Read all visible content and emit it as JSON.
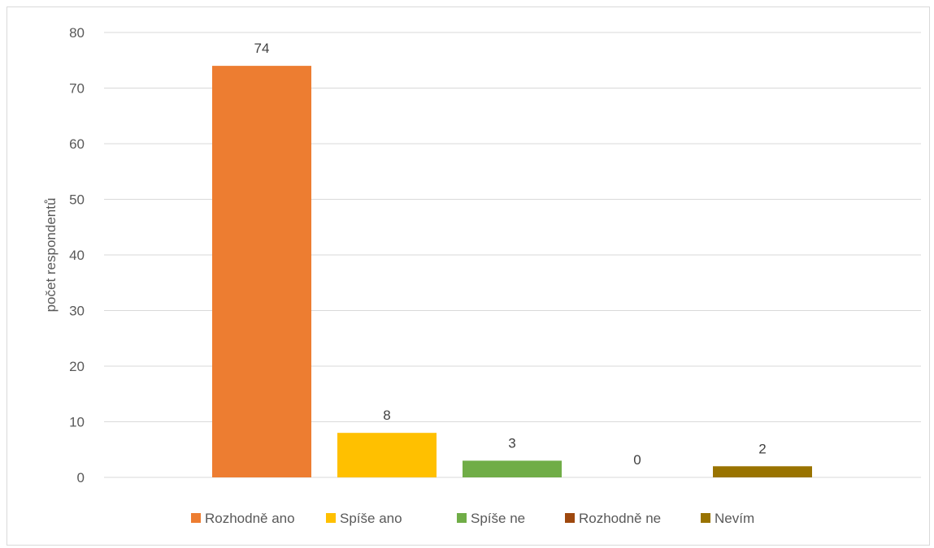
{
  "chart_data": {
    "type": "bar",
    "categories": [
      "Rozhodně ano",
      "Spíše ano",
      "Spíše ne",
      "Rozhodně ne",
      "Nevím"
    ],
    "values": [
      74,
      8,
      3,
      0,
      2
    ],
    "colors": [
      "#ed7d31",
      "#ffc000",
      "#70ad47",
      "#9e480e",
      "#997300"
    ],
    "title": "",
    "xlabel": "",
    "ylabel": "počet respondentů",
    "ylim": [
      0,
      80
    ],
    "yticks": [
      0,
      10,
      20,
      30,
      40,
      50,
      60,
      70,
      80
    ],
    "grid": true,
    "legend_position": "bottom",
    "data_labels": true
  }
}
